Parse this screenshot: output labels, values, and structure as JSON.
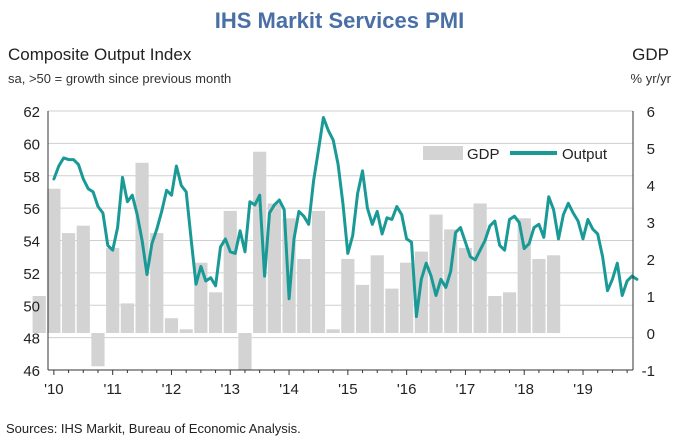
{
  "chart_data": {
    "type": "bar+line",
    "title": "IHS Markit Services PMI",
    "left_axis_title": "Composite Output Index",
    "left_axis_subtitle": "sa, >50 = growth since previous month",
    "right_axis_title": "GDP",
    "right_axis_subtitle": "% yr/yr",
    "source": "Sources: IHS Markit, Bureau of Economic Analysis.",
    "x_tick_labels": [
      "'10",
      "'11",
      "'12",
      "'13",
      "'14",
      "'15",
      "'16",
      "'17",
      "'18",
      "'19"
    ],
    "left_ylim": [
      46,
      62
    ],
    "left_ticks": [
      "46",
      "48",
      "50",
      "52",
      "54",
      "56",
      "58",
      "60",
      "62"
    ],
    "right_ylim": [
      -1,
      6
    ],
    "right_ticks": [
      "-1",
      "0",
      "1",
      "2",
      "3",
      "4",
      "5",
      "6"
    ],
    "legend": [
      {
        "name": "GDP",
        "color": "#d3d3d3"
      },
      {
        "name": "Output",
        "color": "#1a9a96"
      }
    ],
    "gdp_series": {
      "name": "GDP",
      "axis": "right",
      "start": 2009.75,
      "step": 0.25,
      "values": [
        1.0,
        3.9,
        2.7,
        2.9,
        -0.9,
        2.3,
        0.8,
        4.6,
        2.7,
        0.4,
        0.1,
        1.9,
        1.1,
        3.3,
        -1.0,
        4.9,
        3.5,
        3.1,
        2.0,
        3.3,
        0.1,
        2.0,
        1.3,
        2.1,
        1.2,
        1.9,
        2.2,
        3.2,
        2.8,
        2.3,
        3.5,
        1.0,
        1.1,
        3.1,
        2.0,
        2.1
      ]
    },
    "output_series": {
      "name": "Output",
      "axis": "left",
      "start": 2010.0,
      "step": 0.0833333,
      "values": [
        57.8,
        58.6,
        59.1,
        59.0,
        59.0,
        58.7,
        57.8,
        57.2,
        57.0,
        56.1,
        55.7,
        53.7,
        53.4,
        54.8,
        57.9,
        56.4,
        56.8,
        55.6,
        54.0,
        51.9,
        53.8,
        54.7,
        55.8,
        57.1,
        56.8,
        58.6,
        57.4,
        57.0,
        54.1,
        51.3,
        52.4,
        51.5,
        51.7,
        51.2,
        53.6,
        54.1,
        53.3,
        53.2,
        54.6,
        53.3,
        56.4,
        56.2,
        56.8,
        51.8,
        55.7,
        56.2,
        56.5,
        55.9,
        50.4,
        54.1,
        55.8,
        55.5,
        55.0,
        57.7,
        59.6,
        61.6,
        60.8,
        60.2,
        58.7,
        56.3,
        53.2,
        54.3,
        56.9,
        58.3,
        56.0,
        55.0,
        55.8,
        54.4,
        55.4,
        55.3,
        56.1,
        55.6,
        54.1,
        53.9,
        49.3,
        51.6,
        52.6,
        51.8,
        50.6,
        51.6,
        51.1,
        52.1,
        54.5,
        54.8,
        53.9,
        53.0,
        52.8,
        53.4,
        54.0,
        54.9,
        55.2,
        53.7,
        53.4,
        55.3,
        55.5,
        55.1,
        53.5,
        53.8,
        54.8,
        55.0,
        54.2,
        56.7,
        55.9,
        54.1,
        55.6,
        56.3,
        55.7,
        55.2,
        54.1,
        55.3,
        54.7,
        54.4,
        53.0,
        50.9,
        51.6,
        52.6,
        50.6,
        51.5,
        51.8,
        51.6
      ]
    }
  }
}
